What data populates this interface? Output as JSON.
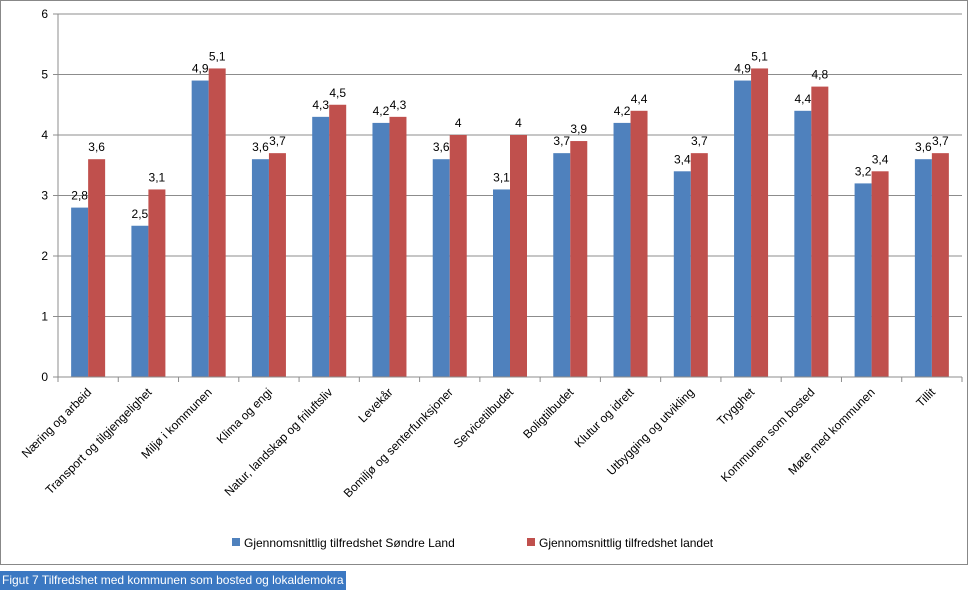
{
  "chart_data": {
    "type": "bar",
    "caption": "Figut 7 Tilfredshet med kommunen som bosted og lokaldemokra",
    "categories": [
      "Næring og arbeid",
      "Transport og tilgjengelighet",
      "Miljø i kommunen",
      "Klima og engi",
      "Natur, landskap og friluftsliv",
      "Levekår",
      "Bomiljø og senterfunksjoner",
      "Servicetilbudet",
      "Boligtilbudet",
      "Klutur og idrett",
      "Utbygging og utvikling",
      "Trygghet",
      "Kommunen som bosted",
      "Møte med kommunen",
      "Tillit"
    ],
    "series": [
      {
        "name": "Gjennomsnittlig tilfredshet Søndre Land",
        "color": "#4f81bd",
        "values": [
          2.8,
          2.5,
          4.9,
          3.6,
          4.3,
          4.2,
          3.6,
          3.1,
          3.7,
          4.2,
          3.4,
          4.9,
          4.4,
          3.2,
          3.6
        ],
        "value_labels": [
          "2,8",
          "2,5",
          "4,9",
          "3,6",
          "4,3",
          "4,2",
          "3,6",
          "3,1",
          "3,7",
          "4,2",
          "3,4",
          "4,9",
          "4,4",
          "3,2",
          "3,6"
        ]
      },
      {
        "name": "Gjennomsnittlig tilfredshet landet",
        "color": "#c0504d",
        "values": [
          3.6,
          3.1,
          5.1,
          3.7,
          4.5,
          4.3,
          4,
          4,
          3.9,
          4.4,
          3.7,
          5.1,
          4.8,
          3.4,
          3.7
        ],
        "value_labels": [
          "3,6",
          "3,1",
          "5,1",
          "3,7",
          "4,5",
          "4,3",
          "4",
          "4",
          "3,9",
          "4,4",
          "3,7",
          "5,1",
          "4,8",
          "3,4",
          "3,7"
        ]
      }
    ],
    "ylim": [
      0,
      6
    ],
    "yticks": [
      0,
      1,
      2,
      3,
      4,
      5,
      6
    ],
    "grid": true,
    "legend": "bottom"
  }
}
